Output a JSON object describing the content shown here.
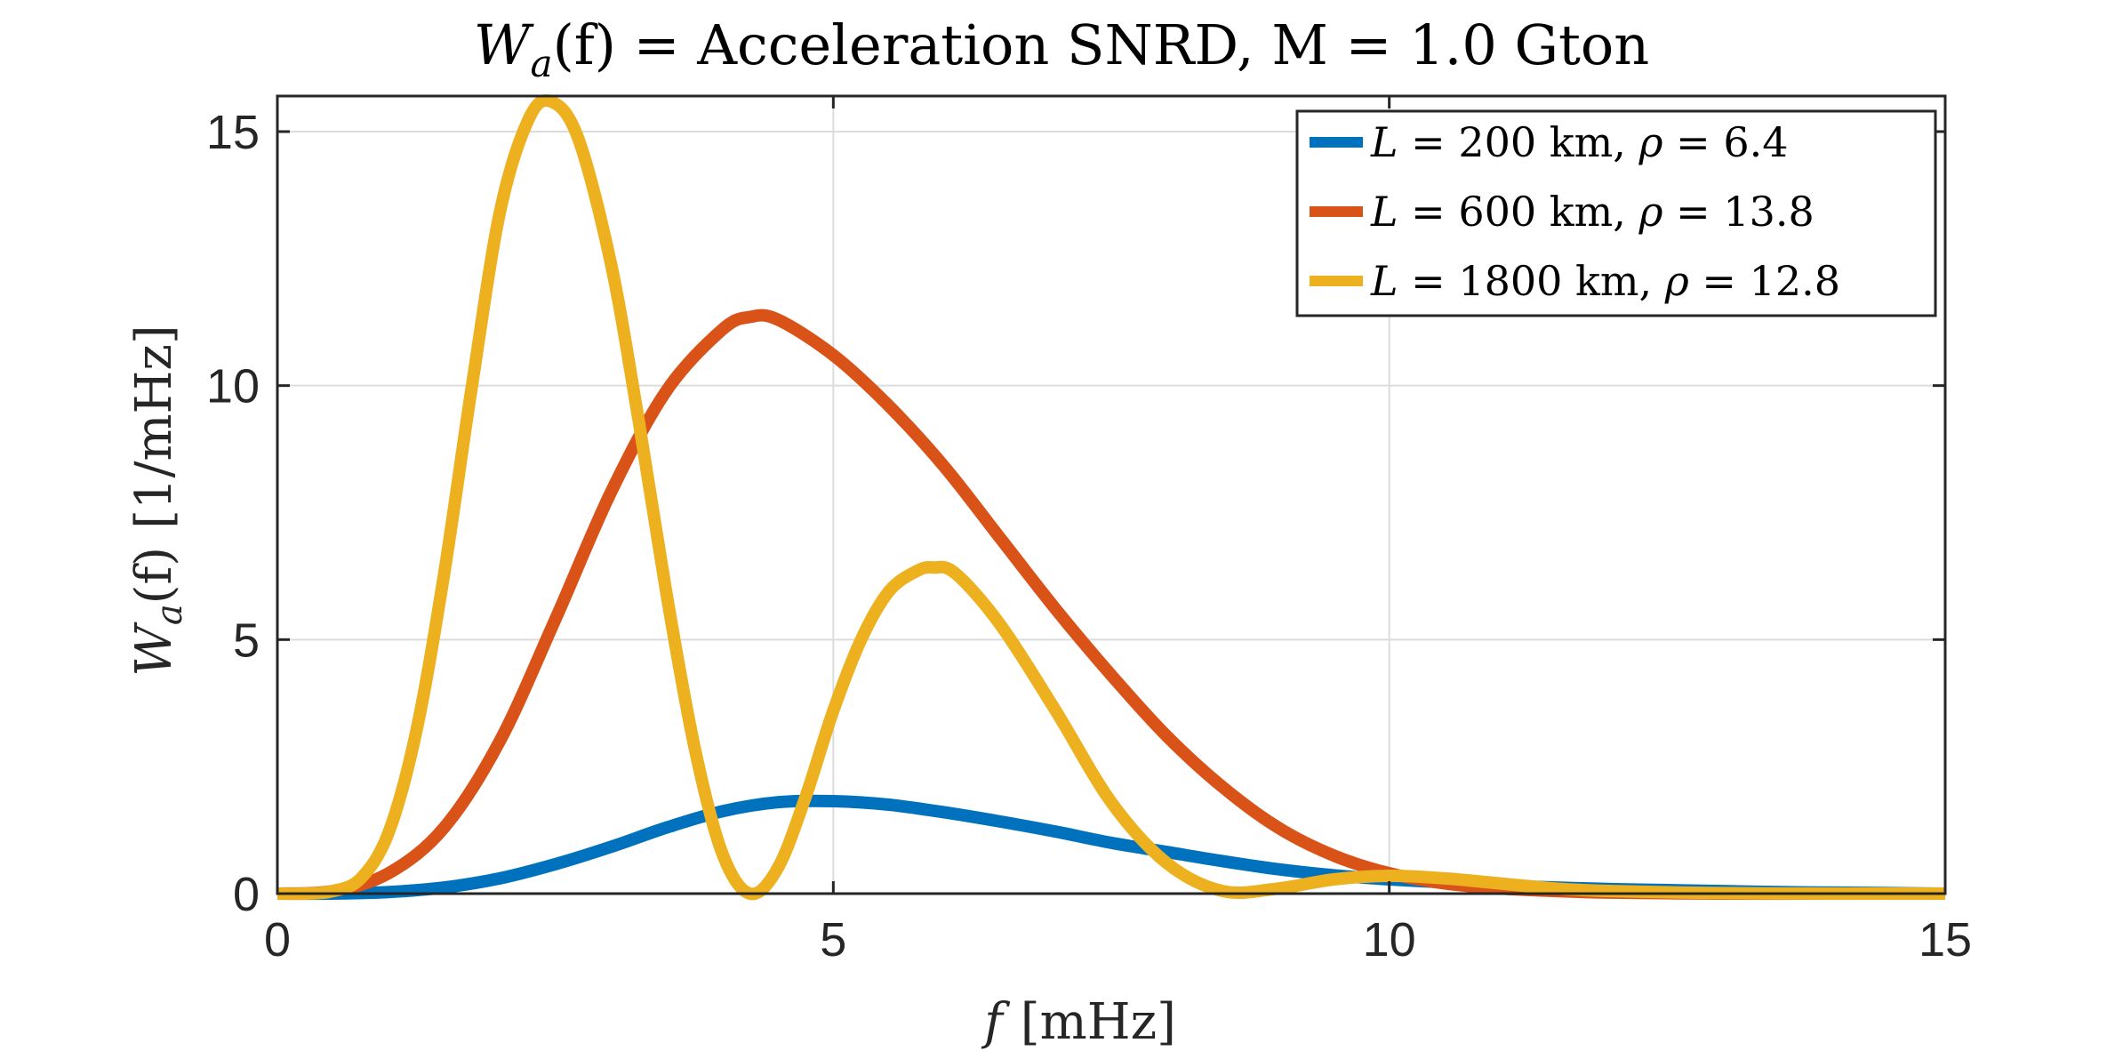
{
  "chart_data": {
    "type": "line",
    "title_parts": {
      "lhs": "W",
      "lhs_sub": "a",
      "lhs_arg": "(f)",
      "rest": " = Acceleration SNRD, M = 1.0 Gton"
    },
    "xlabel": {
      "var": "f",
      "units": "[mHz]"
    },
    "ylabel": {
      "var": "W",
      "sub": "a",
      "arg": "(f)",
      "units": "[1/mHz]"
    },
    "xlim": [
      0,
      15
    ],
    "ylim": [
      0,
      15.7
    ],
    "xticks": [
      0,
      5,
      10,
      15
    ],
    "yticks": [
      0,
      5,
      10,
      15
    ],
    "xtick_labels": [
      "0",
      "5",
      "10",
      "15"
    ],
    "ytick_labels": [
      "0",
      "5",
      "10",
      "15"
    ],
    "grid": true,
    "legend_position": "top-right",
    "series": [
      {
        "name": "L = 200 km, ρ = 6.4",
        "legend_parts": {
          "var": "L",
          "mid": " = 200 km, ",
          "rho": "ρ",
          "end": " = 6.4"
        },
        "color": "#0072BD",
        "x": [
          0,
          0.5,
          1.0,
          1.5,
          2.0,
          2.5,
          3.0,
          3.5,
          4.0,
          4.5,
          5.0,
          5.5,
          6.0,
          6.5,
          7.0,
          7.5,
          8.0,
          8.5,
          9.0,
          9.5,
          10.0,
          10.5,
          11.0,
          11.5,
          12.0,
          12.5,
          13.0,
          13.5,
          14.0,
          14.5,
          15.0
        ],
        "y": [
          0,
          0.0,
          0.03,
          0.12,
          0.3,
          0.58,
          0.92,
          1.3,
          1.62,
          1.8,
          1.82,
          1.75,
          1.6,
          1.42,
          1.22,
          1.0,
          0.82,
          0.64,
          0.48,
          0.36,
          0.28,
          0.22,
          0.16,
          0.12,
          0.09,
          0.07,
          0.05,
          0.03,
          0.02,
          0.01,
          0.0
        ]
      },
      {
        "name": "L = 600 km, ρ = 13.8",
        "legend_parts": {
          "var": "L",
          "mid": " = 600 km, ",
          "rho": "ρ",
          "end": " = 13.8"
        },
        "color": "#D95319",
        "x": [
          0,
          0.5,
          1.0,
          1.5,
          2.0,
          2.5,
          3.0,
          3.5,
          4.0,
          4.25,
          4.5,
          5.0,
          5.5,
          6.0,
          6.5,
          7.0,
          7.5,
          8.0,
          8.5,
          9.0,
          9.5,
          10.0,
          10.5,
          11.0,
          11.5,
          12.0,
          13.0,
          14.0,
          15.0
        ],
        "y": [
          0,
          0.05,
          0.4,
          1.3,
          3.0,
          5.4,
          7.9,
          9.9,
          11.1,
          11.35,
          11.3,
          10.6,
          9.6,
          8.4,
          7.0,
          5.6,
          4.3,
          3.1,
          2.1,
          1.3,
          0.75,
          0.4,
          0.2,
          0.1,
          0.05,
          0.02,
          0.0,
          0.0,
          0.0
        ]
      },
      {
        "name": "L = 1800 km, ρ = 12.8",
        "legend_parts": {
          "var": "L",
          "mid": " = 1800 km, ",
          "rho": "ρ",
          "end": " = 12.8"
        },
        "color": "#EDB120",
        "x": [
          0,
          0.25,
          0.5,
          0.75,
          1.0,
          1.25,
          1.5,
          1.75,
          2.0,
          2.25,
          2.45,
          2.7,
          3.0,
          3.25,
          3.5,
          3.75,
          4.0,
          4.25,
          4.5,
          4.75,
          5.0,
          5.25,
          5.5,
          5.75,
          5.9,
          6.1,
          6.5,
          7.0,
          7.5,
          8.0,
          8.5,
          9.0,
          9.5,
          10.0,
          10.5,
          11.0,
          11.5,
          12.0,
          13.0,
          14.0,
          15.0
        ],
        "y": [
          0,
          0.0,
          0.05,
          0.3,
          1.2,
          3.2,
          6.3,
          10.0,
          13.4,
          15.2,
          15.6,
          14.9,
          12.4,
          9.3,
          5.9,
          2.9,
          0.8,
          0.0,
          0.5,
          1.9,
          3.6,
          5.0,
          5.95,
          6.35,
          6.42,
          6.3,
          5.3,
          3.6,
          1.8,
          0.6,
          0.05,
          0.1,
          0.28,
          0.35,
          0.3,
          0.2,
          0.1,
          0.05,
          0.01,
          0.0,
          0.0
        ]
      }
    ]
  }
}
